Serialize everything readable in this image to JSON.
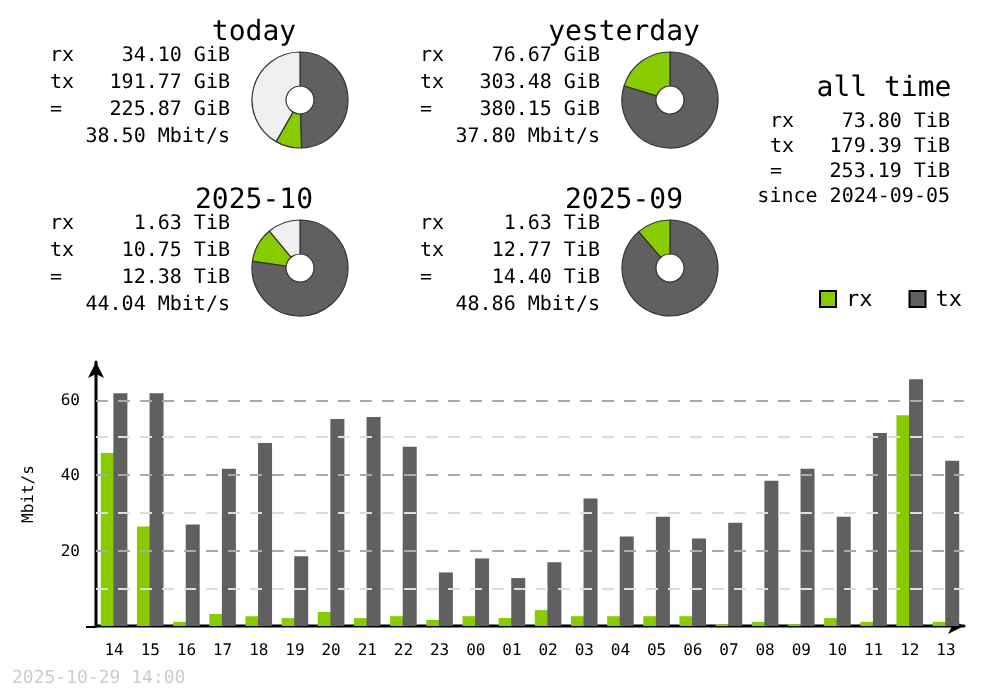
{
  "chart_data": [
    {
      "type": "donut",
      "title": "today",
      "categories": [
        null,
        null,
        null
      ],
      "values": [
        49.5,
        8.8,
        41.7
      ],
      "colors": [
        "#606060",
        "#88cc00",
        "#f0f0f0"
      ],
      "annotations": [
        "rx 34.10 GiB",
        "tx 191.77 GiB",
        "= 225.87 GiB",
        "38.50 Mbit/s"
      ]
    },
    {
      "type": "donut",
      "title": "yesterday",
      "categories": [
        null,
        null
      ],
      "values": [
        79.8,
        20.2
      ],
      "colors": [
        "#606060",
        "#88cc00"
      ],
      "annotations": [
        "rx 76.67 GiB",
        "tx 303.48 GiB",
        "= 380.15 GiB",
        "37.80 Mbit/s"
      ]
    },
    {
      "type": "donut",
      "title": "2025-10",
      "categories": [
        null,
        null,
        null
      ],
      "values": [
        77.3,
        11.7,
        11
      ],
      "colors": [
        "#606060",
        "#88cc00",
        "#f0f0f0"
      ],
      "annotations": [
        "rx 1.63 TiB",
        "tx 10.75 TiB",
        "= 12.38 TiB",
        "44.04 Mbit/s"
      ]
    },
    {
      "type": "donut",
      "title": "2025-09",
      "categories": [
        null,
        null
      ],
      "values": [
        88.7,
        11.3
      ],
      "colors": [
        "#606060",
        "#88cc00"
      ],
      "annotations": [
        "rx 1.63 TiB",
        "tx 12.77 TiB",
        "= 14.40 TiB",
        "48.86 Mbit/s"
      ]
    },
    {
      "type": "other",
      "title": "all time",
      "annotations": [
        "rx 73.80 TiB",
        "tx 179.39 TiB",
        "= 253.19 TiB",
        "since 2024-09-05"
      ]
    },
    {
      "type": "bar",
      "ylabel": "Mbit/s",
      "legend": "top right",
      "grid": "y",
      "categories": [
        "14",
        "15",
        "16",
        "17",
        "18",
        "19",
        "20",
        "21",
        "22",
        "23",
        "00",
        "01",
        "02",
        "03",
        "04",
        "05",
        "06",
        "07",
        "08",
        "09",
        "10",
        "11",
        "12",
        "13"
      ],
      "series": [
        {
          "name": "rx",
          "color": "#88cc00",
          "values": [
            45.9,
            26.4,
            1.1,
            3.2,
            2.6,
            2.1,
            3.7,
            2.1,
            2.6,
            1.6,
            2.6,
            2.1,
            4.2,
            2.6,
            2.6,
            2.6,
            2.6,
            0.5,
            1.1,
            0.5,
            2.1,
            1.1,
            55.9,
            1.1
          ]
        },
        {
          "name": "tx",
          "color": "#606060",
          "values": [
            61.7,
            61.7,
            26.9,
            41.7,
            48.5,
            18.5,
            54.9,
            55.4,
            47.5,
            14.2,
            17.9,
            12.7,
            16.9,
            33.8,
            23.7,
            29.0,
            23.2,
            27.4,
            38.5,
            41.7,
            29.0,
            51.2,
            65.4,
            43.8
          ]
        }
      ],
      "ylim": [
        0,
        70
      ],
      "yticks": [
        {
          "value": 0,
          "label": null
        },
        {
          "value": 10,
          "label": null
        },
        20,
        {
          "value": 30,
          "label": null
        },
        40,
        {
          "value": 50,
          "label": null
        },
        60
      ],
      "annotations": [
        "2025-10-29 14:00"
      ]
    }
  ]
}
